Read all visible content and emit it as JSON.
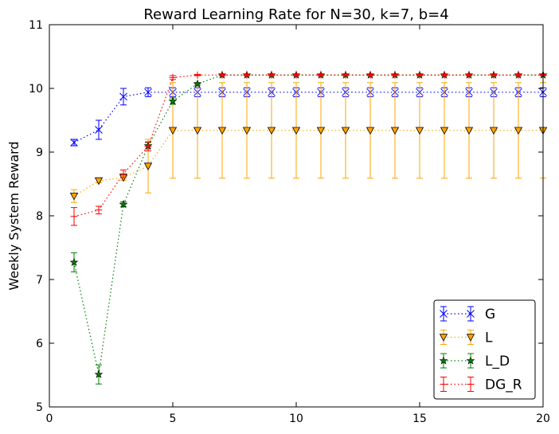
{
  "chart_data": {
    "type": "line",
    "title": "Reward Learning Rate for N=30, k=7, b=4",
    "xlabel": "",
    "ylabel": "Weekly System Reward",
    "xlim": [
      0,
      20
    ],
    "ylim": [
      5,
      11
    ],
    "xticks": [
      "0",
      "5",
      "10",
      "15",
      "20"
    ],
    "yticks": [
      "5",
      "6",
      "7",
      "8",
      "9",
      "10",
      "11"
    ],
    "grid": false,
    "legend_position": "bottom-right",
    "x": [
      1,
      2,
      3,
      4,
      5,
      6,
      7,
      8,
      9,
      10,
      11,
      12,
      13,
      14,
      15,
      16,
      17,
      18,
      19,
      20
    ],
    "series": [
      {
        "name": "G",
        "color": "#0000ff",
        "marker": "x",
        "values": [
          9.15,
          9.35,
          9.87,
          9.94,
          9.94,
          9.94,
          9.94,
          9.94,
          9.94,
          9.94,
          9.94,
          9.94,
          9.94,
          9.94,
          9.94,
          9.94,
          9.94,
          9.94,
          9.94,
          9.94
        ],
        "errors": [
          0.05,
          0.15,
          0.13,
          0.07,
          0.07,
          0.07,
          0.07,
          0.07,
          0.07,
          0.07,
          0.07,
          0.07,
          0.07,
          0.07,
          0.07,
          0.07,
          0.07,
          0.07,
          0.07,
          0.07
        ]
      },
      {
        "name": "L",
        "color": "#ffa500",
        "marker": "triangle-down",
        "values": [
          8.31,
          8.55,
          8.6,
          8.78,
          9.34,
          9.34,
          9.34,
          9.34,
          9.34,
          9.34,
          9.34,
          9.34,
          9.34,
          9.34,
          9.34,
          9.34,
          9.34,
          9.34,
          9.34,
          9.34
        ],
        "errors": [
          0.1,
          0.03,
          0.04,
          0.42,
          0.75,
          0.75,
          0.75,
          0.75,
          0.75,
          0.75,
          0.75,
          0.75,
          0.75,
          0.75,
          0.75,
          0.75,
          0.75,
          0.75,
          0.75,
          0.75
        ]
      },
      {
        "name": "L_D",
        "color": "#008000",
        "marker": "star",
        "values": [
          7.27,
          5.51,
          8.18,
          9.1,
          9.8,
          10.07,
          10.21,
          10.21,
          10.21,
          10.21,
          10.21,
          10.21,
          10.21,
          10.21,
          10.21,
          10.21,
          10.21,
          10.21,
          10.21,
          10.21
        ],
        "errors": [
          0.15,
          0.15,
          0.04,
          0.05,
          0.05,
          0.02,
          0.01,
          0.01,
          0.01,
          0.01,
          0.01,
          0.01,
          0.01,
          0.01,
          0.01,
          0.01,
          0.01,
          0.01,
          0.01,
          0.01
        ]
      },
      {
        "name": "DG_R",
        "color": "#ff0000",
        "marker": "plus",
        "values": [
          7.99,
          8.09,
          8.66,
          9.09,
          10.17,
          10.21,
          10.21,
          10.21,
          10.21,
          10.21,
          10.21,
          10.21,
          10.21,
          10.21,
          10.21,
          10.21,
          10.21,
          10.21,
          10.21,
          10.21
        ],
        "errors": [
          0.14,
          0.06,
          0.06,
          0.07,
          0.03,
          0.01,
          0.01,
          0.01,
          0.01,
          0.01,
          0.01,
          0.01,
          0.01,
          0.01,
          0.01,
          0.01,
          0.01,
          0.01,
          0.01,
          0.01
        ]
      }
    ]
  }
}
